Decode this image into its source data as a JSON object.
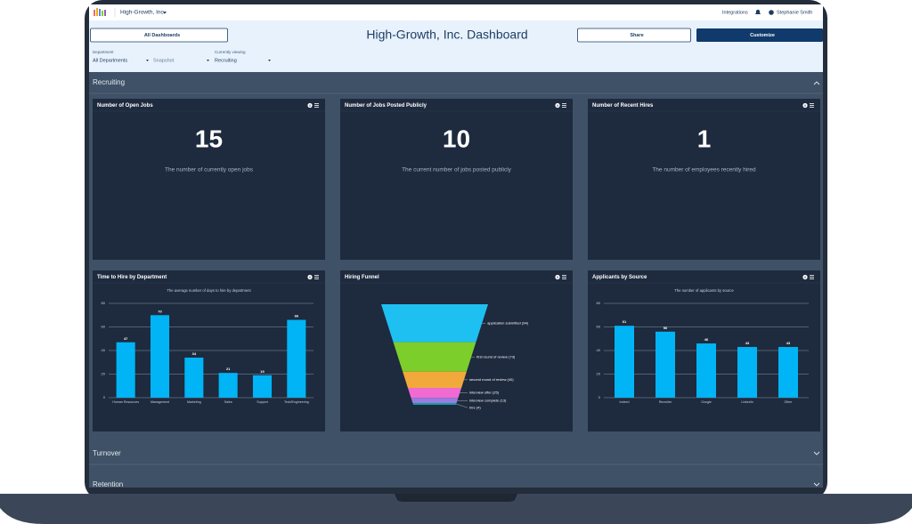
{
  "header": {
    "brand": "High-Growth, Inc.",
    "integrations": "Integrations",
    "user": "Stephanie Smith"
  },
  "toolbar": {
    "all_dashboards": "All Dashboards",
    "title": "High-Growth, Inc. Dashboard",
    "share": "Share",
    "customize": "Customize"
  },
  "filters": [
    {
      "label": "Department",
      "value": "All Departments"
    },
    {
      "value": "Snapshot"
    },
    {
      "label": "Currently viewing",
      "value": "Recruiting"
    }
  ],
  "sections": [
    "Recruiting",
    "Turnover",
    "Retention"
  ],
  "kpis": [
    {
      "title": "Number of Open Jobs",
      "value": 15,
      "description": "The number of currently open jobs"
    },
    {
      "title": "Number of Jobs Posted Publicly",
      "value": 10,
      "description": "The current number of jobs posted publicly"
    },
    {
      "title": "Number of Recent Hires",
      "value": 1,
      "description": "The number of employees recently hired"
    }
  ],
  "chart_data": [
    {
      "type": "bar",
      "title": "Time to Hire by Department",
      "subtitle": "The average number of days to hire by department",
      "categories": [
        "Human Resources",
        "Management",
        "Marketing",
        "Sales",
        "Support",
        "Tech/Engineering"
      ],
      "values": [
        47,
        70,
        34,
        21,
        19,
        66
      ],
      "color": "#00b4f5",
      "ylim": [
        0,
        80
      ],
      "yticks": [
        0,
        20,
        40,
        60,
        80
      ],
      "grid": true
    },
    {
      "type": "funnel",
      "title": "Hiring Funnel",
      "values": [
        94,
        73,
        40,
        25,
        13,
        4
      ],
      "value_labels": [
        "application submitted (94)",
        "first round of review (73)",
        "second round of review (40)",
        "interview offer (25)",
        "interview complete (13)",
        "hire (4)"
      ],
      "colors": [
        "#1ec0f2",
        "#7ccf2a",
        "#f2a93b",
        "#f06ad2",
        "#9a7be0",
        "#15a3a8"
      ]
    },
    {
      "type": "bar",
      "title": "Applicants by Source",
      "subtitle": "The number of applicants by source",
      "categories": [
        "Indeed",
        "Recruiter",
        "Google",
        "LinkedIn",
        "Other"
      ],
      "values": [
        61,
        56,
        46,
        43,
        43
      ],
      "color": "#00b4f5",
      "ylim": [
        0,
        80
      ],
      "yticks": [
        0,
        20,
        40,
        60,
        80
      ],
      "grid": true
    }
  ]
}
